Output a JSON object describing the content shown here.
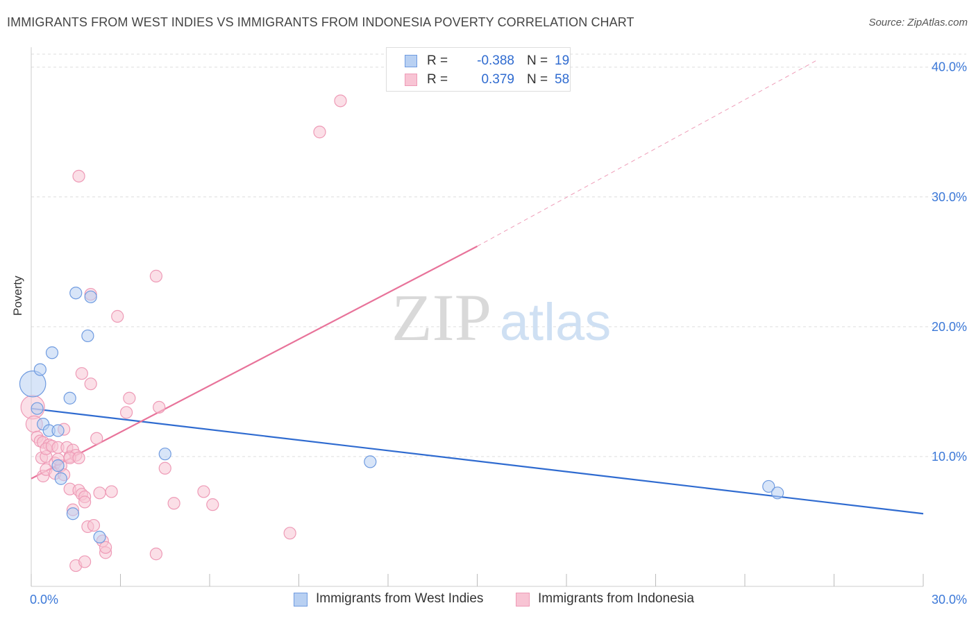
{
  "title": "IMMIGRANTS FROM WEST INDIES VS IMMIGRANTS FROM INDONESIA POVERTY CORRELATION CHART",
  "source": "Source: ZipAtlas.com",
  "watermark": {
    "zip": "ZIP",
    "atlas": "atlas"
  },
  "colors": {
    "blue": "#2f6bd0",
    "blue_fill": "#b8d0f2",
    "blue_stroke": "#6f9be0",
    "pink": "#e8739a",
    "pink_fill": "#f8c4d4",
    "pink_stroke": "#ee9ab6",
    "axis_text": "#3b78d8",
    "grid": "#dddddd"
  },
  "legend": {
    "rows": [
      {
        "r_label": "R =",
        "r_value": "-0.388",
        "n_label": "N =",
        "n_value": "19",
        "series": "west_indies"
      },
      {
        "r_label": "R =",
        "r_value": "0.379",
        "n_label": "N =",
        "n_value": "58",
        "series": "indonesia"
      }
    ]
  },
  "bottom_legend": {
    "west_indies": "Immigrants from West Indies",
    "indonesia": "Immigrants from Indonesia"
  },
  "chart_data": {
    "type": "scatter",
    "title": "IMMIGRANTS FROM WEST INDIES VS IMMIGRANTS FROM INDONESIA POVERTY CORRELATION CHART",
    "xlabel": "",
    "ylabel": "Poverty",
    "xlim": [
      0,
      30
    ],
    "ylim": [
      0,
      41
    ],
    "x_tick_labels": [
      "0.0%",
      "30.0%"
    ],
    "y_ticks": [
      10,
      20,
      30,
      40
    ],
    "y_tick_labels": [
      "10.0%",
      "20.0%",
      "30.0%",
      "40.0%"
    ],
    "grid": true,
    "series": [
      {
        "name": "Immigrants from West Indies",
        "color": "blue",
        "points": [
          [
            0.05,
            15.6,
            2.2
          ],
          [
            0.3,
            16.7,
            1
          ],
          [
            0.2,
            13.7,
            1
          ],
          [
            0.4,
            12.5,
            1
          ],
          [
            0.6,
            12.0,
            1
          ],
          [
            0.9,
            12.0,
            1
          ],
          [
            0.7,
            18.0,
            1
          ],
          [
            1.5,
            22.6,
            1
          ],
          [
            1.9,
            19.3,
            1
          ],
          [
            1.3,
            14.5,
            1
          ],
          [
            2.0,
            22.3,
            1
          ],
          [
            0.9,
            9.3,
            1
          ],
          [
            1.0,
            8.3,
            1
          ],
          [
            1.4,
            5.6,
            1
          ],
          [
            2.3,
            3.8,
            1
          ],
          [
            4.5,
            10.2,
            1
          ],
          [
            11.4,
            9.6,
            1
          ],
          [
            24.8,
            7.7,
            1
          ],
          [
            25.1,
            7.2,
            1
          ]
        ],
        "trend": {
          "x0": 0,
          "y0": 13.7,
          "x1": 30,
          "y1": 5.6,
          "dashed_to": null
        }
      },
      {
        "name": "Immigrants from Indonesia",
        "color": "pink",
        "points": [
          [
            0.05,
            13.8,
            2.0
          ],
          [
            0.1,
            12.5,
            1.4
          ],
          [
            0.2,
            11.5,
            1
          ],
          [
            0.3,
            11.2,
            1
          ],
          [
            0.35,
            9.9,
            1
          ],
          [
            0.5,
            10.0,
            1
          ],
          [
            0.4,
            11.1,
            1
          ],
          [
            0.6,
            10.9,
            1
          ],
          [
            0.5,
            10.6,
            1
          ],
          [
            0.7,
            10.8,
            1
          ],
          [
            0.8,
            9.5,
            1
          ],
          [
            0.4,
            8.5,
            1
          ],
          [
            0.5,
            9.0,
            1
          ],
          [
            0.8,
            8.7,
            1
          ],
          [
            0.9,
            10.7,
            1
          ],
          [
            1.0,
            9.3,
            1
          ],
          [
            1.1,
            8.6,
            1
          ],
          [
            1.1,
            12.1,
            1
          ],
          [
            1.2,
            10.7,
            1
          ],
          [
            1.3,
            10.0,
            1
          ],
          [
            1.4,
            10.5,
            1
          ],
          [
            1.5,
            10.1,
            1
          ],
          [
            1.3,
            9.9,
            1
          ],
          [
            1.6,
            9.9,
            1
          ],
          [
            1.6,
            31.6,
            1
          ],
          [
            1.7,
            16.4,
            1
          ],
          [
            2.0,
            15.6,
            1
          ],
          [
            2.2,
            11.4,
            1
          ],
          [
            1.3,
            7.5,
            1
          ],
          [
            1.6,
            7.4,
            1
          ],
          [
            1.7,
            7.1,
            1
          ],
          [
            1.8,
            6.9,
            1
          ],
          [
            1.8,
            6.5,
            1
          ],
          [
            2.3,
            7.2,
            1
          ],
          [
            2.7,
            7.3,
            1
          ],
          [
            1.4,
            5.9,
            1
          ],
          [
            1.9,
            4.6,
            1
          ],
          [
            2.1,
            4.7,
            1
          ],
          [
            2.4,
            3.5,
            1
          ],
          [
            2.5,
            2.6,
            1
          ],
          [
            2.5,
            3.0,
            1
          ],
          [
            1.5,
            1.6,
            1
          ],
          [
            1.8,
            1.9,
            1
          ],
          [
            2.0,
            22.5,
            1
          ],
          [
            2.9,
            20.8,
            1
          ],
          [
            3.2,
            13.4,
            1
          ],
          [
            3.3,
            14.5,
            1
          ],
          [
            4.2,
            23.9,
            1
          ],
          [
            4.3,
            13.8,
            1
          ],
          [
            4.5,
            9.1,
            1
          ],
          [
            4.8,
            6.4,
            1
          ],
          [
            5.8,
            7.3,
            1
          ],
          [
            6.1,
            6.3,
            1
          ],
          [
            4.2,
            2.5,
            1
          ],
          [
            8.7,
            4.1,
            1
          ],
          [
            9.7,
            35.0,
            1
          ],
          [
            10.4,
            37.4,
            1
          ],
          [
            0.9,
            9.8,
            1
          ]
        ],
        "trend": {
          "x0": 0,
          "y0": 8.3,
          "x1": 15,
          "y1": 26.2,
          "dashed_to": {
            "x": 26.4,
            "y": 40.5
          }
        }
      }
    ]
  }
}
